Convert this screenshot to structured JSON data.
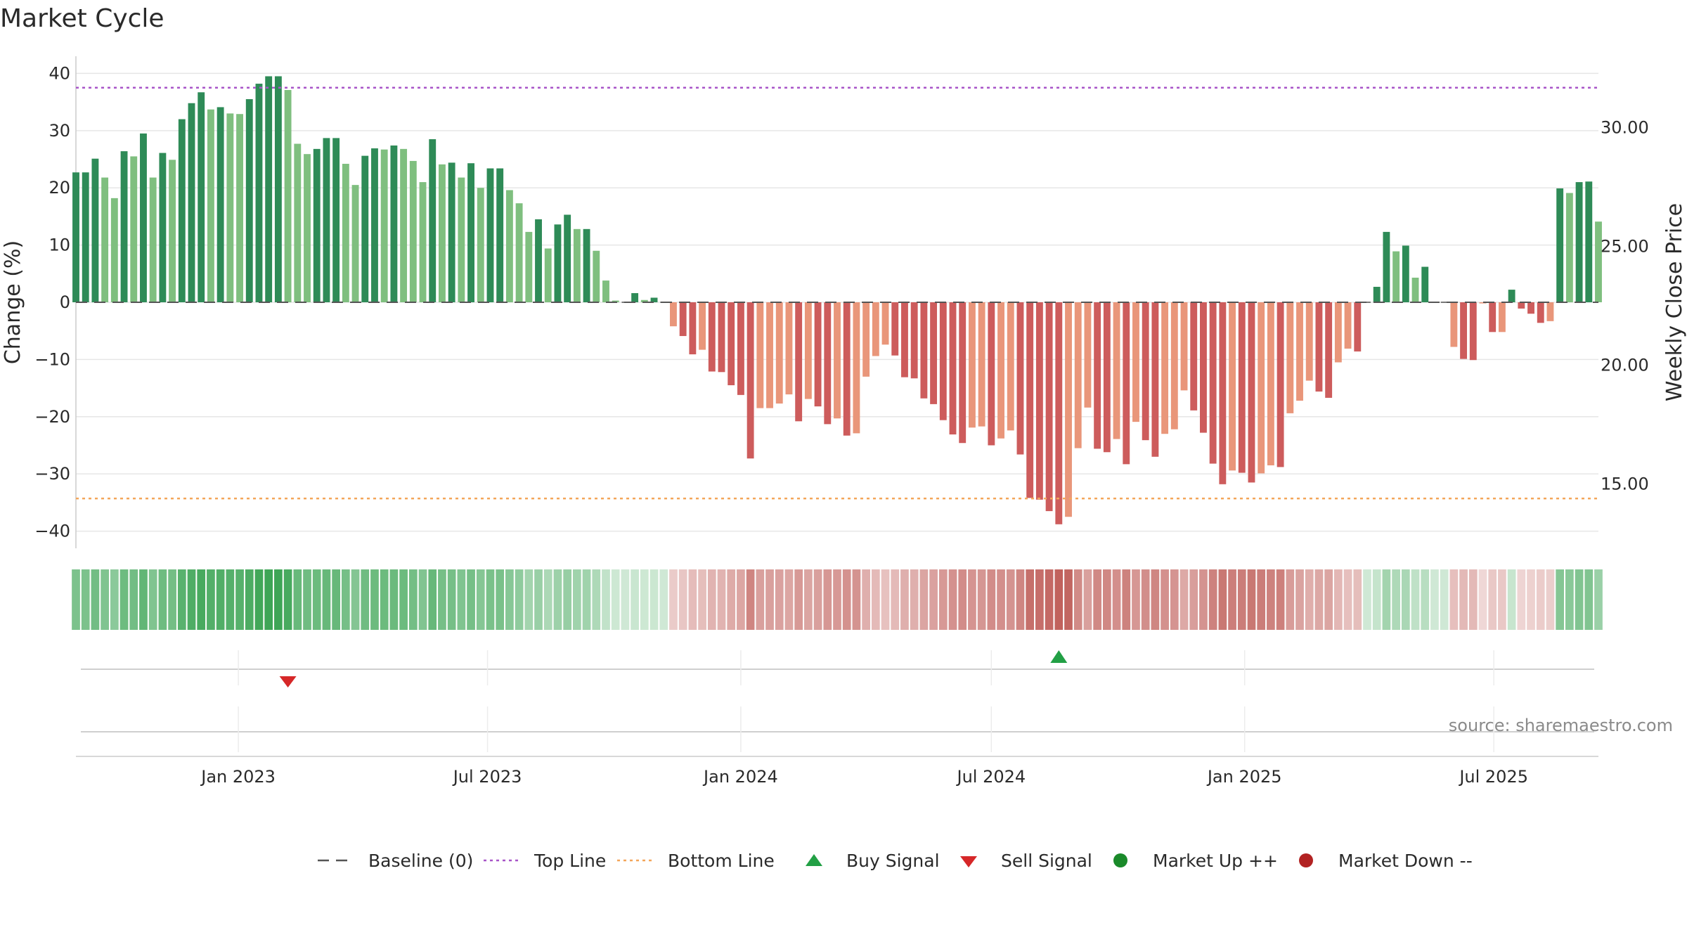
{
  "chart_data": {
    "type": "bar",
    "title": "Market Cycle",
    "ylabel": "Change (%)",
    "y2label": "Weekly Close Price",
    "ylim": [
      -43,
      43
    ],
    "y_ticks": [
      40,
      30,
      20,
      10,
      0,
      -10,
      -20,
      -30,
      -40
    ],
    "y_tick_labels": [
      "40",
      "30",
      "20",
      "10",
      "0",
      "−10",
      "−20",
      "−30",
      "−40"
    ],
    "y2lim": [
      12.3,
      33.0
    ],
    "y2_ticks": [
      {
        "value": 30.0,
        "label": "30.00"
      },
      {
        "value": 25.0,
        "label": "25.00"
      },
      {
        "value": 20.0,
        "label": "20.00"
      },
      {
        "value": 15.0,
        "label": "15.00"
      }
    ],
    "x_start": "2022-09-05",
    "x_end": "2025-09-15",
    "x_ticks": [
      {
        "date": "2023-01-01",
        "label": "Jan 2023"
      },
      {
        "date": "2023-07-01",
        "label": "Jul 2023"
      },
      {
        "date": "2024-01-01",
        "label": "Jan 2024"
      },
      {
        "date": "2024-07-01",
        "label": "Jul 2024"
      },
      {
        "date": "2025-01-01",
        "label": "Jan 2025"
      },
      {
        "date": "2025-07-01",
        "label": "Jul 2025"
      }
    ],
    "first_week": "2022-09-05",
    "values": [
      22.7,
      22.7,
      25.1,
      21.8,
      18.2,
      26.4,
      25.5,
      29.5,
      21.8,
      26.1,
      24.9,
      32.0,
      34.8,
      36.7,
      33.7,
      34.1,
      33.0,
      32.9,
      35.5,
      38.2,
      39.5,
      39.5,
      37.1,
      27.7,
      25.9,
      26.8,
      28.7,
      28.7,
      24.2,
      20.5,
      25.6,
      26.9,
      26.7,
      27.4,
      26.8,
      24.7,
      21.0,
      28.5,
      24.1,
      24.4,
      21.8,
      24.3,
      20.0,
      23.4,
      23.4,
      19.6,
      17.3,
      12.3,
      14.5,
      9.4,
      13.6,
      15.3,
      12.8,
      12.8,
      9.0,
      3.8,
      0.3,
      null,
      1.6,
      0.4,
      0.8,
      null,
      -4.2,
      -5.9,
      -9.1,
      -8.3,
      -12.1,
      -12.2,
      -14.5,
      -16.2,
      -27.3,
      -18.5,
      -18.5,
      -17.7,
      -16.1,
      -20.8,
      -16.9,
      -18.2,
      -21.3,
      -20.3,
      -23.3,
      -22.9,
      -13.0,
      -9.4,
      -7.4,
      -9.3,
      -13.1,
      -13.3,
      -16.8,
      -17.8,
      -20.6,
      -23.1,
      -24.6,
      -21.9,
      -21.7,
      -25.0,
      -23.8,
      -22.4,
      -26.6,
      -34.2,
      -34.5,
      -36.5,
      -38.8,
      -37.5,
      -25.5,
      -18.4,
      -25.6,
      -26.2,
      -23.9,
      -28.3,
      -20.9,
      -24.1,
      -27.0,
      -23.0,
      -22.2,
      -15.4,
      -18.9,
      -22.8,
      -28.2,
      -31.8,
      -29.4,
      -29.8,
      -31.5,
      -29.9,
      -28.5,
      -28.8,
      -19.4,
      -17.2,
      -13.7,
      -15.6,
      -16.7,
      -10.5,
      -8.1,
      -8.6,
      null,
      2.7,
      12.3,
      8.9,
      9.9,
      4.3,
      6.2,
      null,
      null,
      -7.8,
      -9.9,
      -10.1,
      -0.2,
      -5.2,
      -5.2,
      2.2,
      -1.1,
      -2.0,
      -3.6,
      -3.3,
      19.9,
      19.1,
      21.0,
      21.1,
      14.1
    ],
    "bar_colors": {
      "up_strong": "#2e8b57",
      "up_weak": "#7fbf7f",
      "down_strong": "#cd5c5c",
      "down_weak": "#e9967a"
    },
    "baseline": 0,
    "top_line": 37.5,
    "bottom_line": -34.3,
    "line_colors": {
      "baseline": "#555555",
      "top": "#a855c8",
      "bottom": "#f4a65a"
    },
    "signals": [
      {
        "type": "sell",
        "date": "2023-02-06"
      },
      {
        "type": "buy",
        "date": "2024-08-19"
      }
    ],
    "signal_colors": {
      "buy": "#22a045",
      "sell": "#d62728"
    },
    "legend_position": "bottom-center",
    "legend": [
      {
        "label": "Baseline (0)",
        "symbol": "dash",
        "color": "#555555"
      },
      {
        "label": "Top Line",
        "symbol": "dot-line",
        "color": "#a855c8"
      },
      {
        "label": "Bottom Line",
        "symbol": "dot-line",
        "color": "#f4a65a"
      },
      {
        "label": "Buy Signal",
        "symbol": "triangle-up",
        "color": "#22a045"
      },
      {
        "label": "Sell Signal",
        "symbol": "triangle-down",
        "color": "#d62728"
      },
      {
        "label": "Market Up ++",
        "symbol": "circle",
        "color": "#1a8a2a"
      },
      {
        "label": "Market Down --",
        "symbol": "circle",
        "color": "#b22222"
      }
    ],
    "heat_colors": {
      "positive": "#3ea556",
      "negative": "#c0605b"
    },
    "grid": true,
    "source": "source: sharemaestro.com"
  }
}
